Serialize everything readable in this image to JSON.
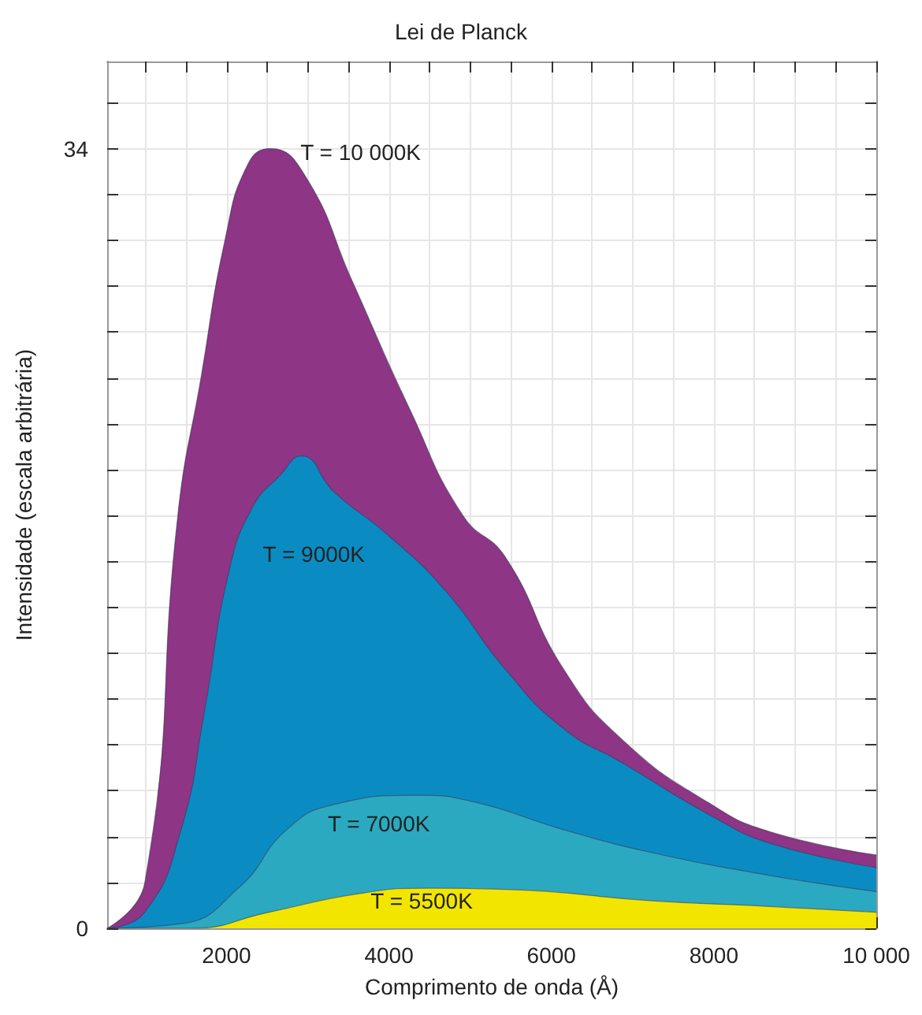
{
  "chart_data": {
    "type": "area",
    "title": "Lei de Planck",
    "xlabel": "Comprimento de onda (Å)",
    "ylabel": "Intensidade (escala arbitrária)",
    "xlim": [
      530,
      10000
    ],
    "ylim": [
      0,
      37.8
    ],
    "xticks": [
      {
        "value": 1000,
        "label": null
      },
      {
        "value": 1500,
        "label": null
      },
      2000,
      {
        "value": 2500,
        "label": null
      },
      {
        "value": 3000,
        "label": null
      },
      {
        "value": 3500,
        "label": null
      },
      4000,
      {
        "value": 4500,
        "label": null
      },
      {
        "value": 5000,
        "label": null
      },
      {
        "value": 5500,
        "label": null
      },
      6000,
      {
        "value": 6500,
        "label": null
      },
      {
        "value": 7000,
        "label": null
      },
      {
        "value": 7500,
        "label": null
      },
      8000,
      {
        "value": 8500,
        "label": null
      },
      {
        "value": 9000,
        "label": null
      },
      {
        "value": 9500,
        "label": null
      },
      {
        "value": 10000,
        "label": "10 000"
      }
    ],
    "yticks": [
      0,
      {
        "value": 2,
        "label": null
      },
      {
        "value": 4,
        "label": null
      },
      {
        "value": 6,
        "label": null
      },
      {
        "value": 8,
        "label": null
      },
      {
        "value": 10,
        "label": null
      },
      {
        "value": 12,
        "label": null
      },
      {
        "value": 14,
        "label": null
      },
      {
        "value": 16,
        "label": null
      },
      {
        "value": 18,
        "label": null
      },
      {
        "value": 20,
        "label": null
      },
      {
        "value": 22,
        "label": null
      },
      {
        "value": 24,
        "label": null
      },
      {
        "value": 26,
        "label": null
      },
      {
        "value": 28,
        "label": null
      },
      {
        "value": 30,
        "label": null
      },
      {
        "value": 32,
        "label": null
      },
      34,
      {
        "value": 36,
        "label": null
      }
    ],
    "grid": true,
    "legend": false,
    "marker": "none",
    "series": [
      {
        "name": "T = 10 000K",
        "color": "#8e3585",
        "x": [
          530,
          994,
          1400,
          1690,
          1980,
          2260,
          2540,
          2970,
          3550,
          4260,
          4910,
          5430,
          6150,
          6880,
          7970,
          8700,
          10000
        ],
        "values": [
          0,
          2.0,
          18.0,
          24.1,
          30.0,
          33.3,
          34.0,
          32.8,
          28.2,
          22.6,
          18.0,
          16.2,
          11.3,
          8.2,
          5.4,
          4.2,
          3.2
        ]
      },
      {
        "name": "T = 9000K",
        "color": "#0a8cc2",
        "x": [
          530,
          994,
          1440,
          1730,
          2020,
          2310,
          2670,
          2920,
          3330,
          3970,
          4700,
          5430,
          6150,
          6880,
          7970,
          8700,
          10000
        ],
        "values": [
          0,
          0.7,
          4.3,
          9.5,
          15.4,
          18.3,
          19.8,
          20.6,
          19.0,
          17.2,
          14.7,
          11.3,
          8.7,
          7.2,
          4.9,
          3.7,
          2.65
        ]
      },
      {
        "name": "T = 7000K",
        "color": "#2ba9c0",
        "x": [
          530,
          1440,
          2160,
          2740,
          3320,
          4340,
          5060,
          6150,
          7240,
          8700,
          10000
        ],
        "values": [
          0,
          0.2,
          1.8,
          4.3,
          5.4,
          5.8,
          5.5,
          4.3,
          3.3,
          2.3,
          1.6
        ]
      },
      {
        "name": "T = 5500K",
        "color": "#f2e600",
        "x": [
          530,
          1560,
          2520,
          3610,
          4480,
          5430,
          7240,
          8700,
          10000
        ],
        "values": [
          0,
          0,
          0.7,
          1.5,
          1.75,
          1.7,
          1.2,
          0.95,
          0.7
        ]
      }
    ]
  }
}
